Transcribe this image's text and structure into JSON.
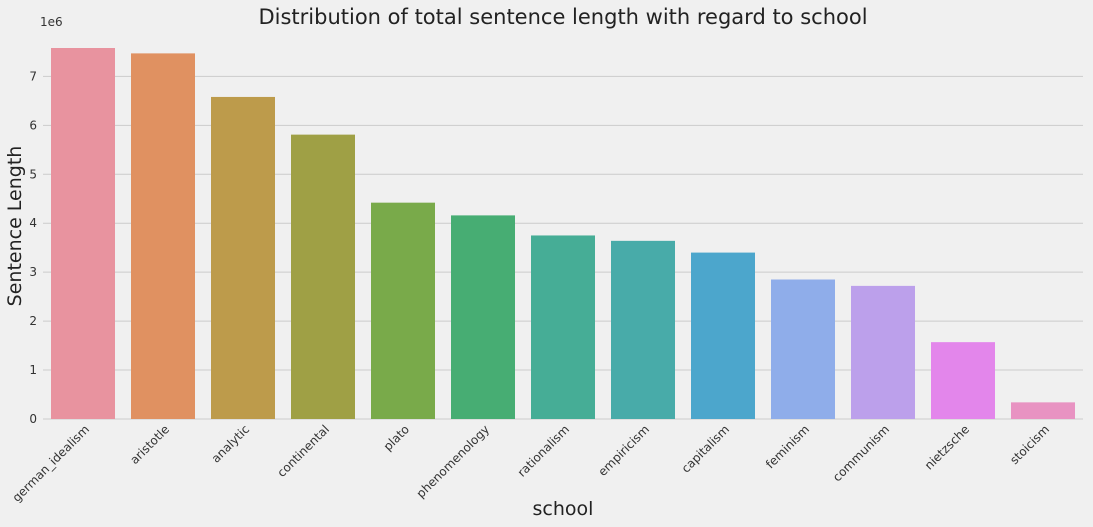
{
  "chart_data": {
    "type": "bar",
    "title": "Distribution of total sentence length with regard to school",
    "xlabel": "school",
    "ylabel": "Sentence Length",
    "y_scale_label": "1e6",
    "categories": [
      "german_idealism",
      "aristotle",
      "analytic",
      "continental",
      "plato",
      "phenomenology",
      "rationalism",
      "empiricism",
      "capitalism",
      "feminism",
      "communism",
      "nietzsche",
      "stoicism"
    ],
    "values": [
      7.58,
      7.47,
      6.58,
      5.81,
      4.42,
      4.16,
      3.75,
      3.64,
      3.4,
      2.85,
      2.72,
      1.57,
      0.34
    ],
    "yticks": [
      0,
      1,
      2,
      3,
      4,
      5,
      6,
      7
    ],
    "ylim": [
      0,
      7.58
    ],
    "grid": true,
    "colors": [
      "#e8939f",
      "#e09161",
      "#bd9b4b",
      "#9fa045",
      "#79aa4a",
      "#47ad73",
      "#46ad96",
      "#48aba9",
      "#4ca6cc",
      "#8fadea",
      "#bca0eb",
      "#e386eb",
      "#e893c2"
    ]
  }
}
